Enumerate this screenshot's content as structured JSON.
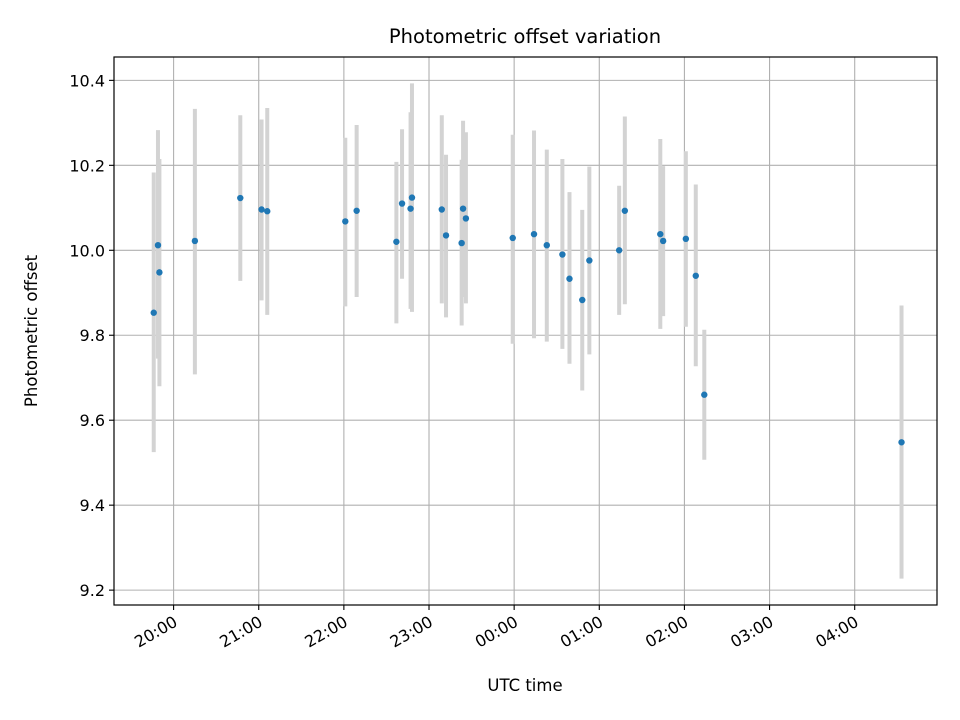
{
  "chart_data": {
    "type": "scatter",
    "title": "Photometric offset variation",
    "xlabel": "UTC time",
    "ylabel": "Photometric offset",
    "x_unit": "UTC time of day (wraps past midnight)",
    "xlim": [
      "19:18",
      "04:58"
    ],
    "ylim": [
      9.165,
      10.455
    ],
    "x_ticks": [
      "20:00",
      "21:00",
      "22:00",
      "23:00",
      "00:00",
      "01:00",
      "02:00",
      "03:00",
      "04:00"
    ],
    "y_ticks": [
      "9.2",
      "9.4",
      "9.6",
      "9.8",
      "10.0",
      "10.2",
      "10.4"
    ],
    "grid": true,
    "legend": "none",
    "colors": {
      "marker": "#1f77b4",
      "errorbar": "#d3d3d3",
      "grid": "#b0b0b0",
      "axes": "#000000"
    },
    "points": [
      {
        "x": "19:46",
        "y": 9.853,
        "ylow": 9.525,
        "yhigh": 10.183
      },
      {
        "x": "19:49",
        "y": 10.012,
        "ylow": 9.745,
        "yhigh": 10.283
      },
      {
        "x": "19:50",
        "y": 9.948,
        "ylow": 9.68,
        "yhigh": 10.215
      },
      {
        "x": "20:15",
        "y": 10.022,
        "ylow": 9.708,
        "yhigh": 10.333
      },
      {
        "x": "20:47",
        "y": 10.123,
        "ylow": 9.928,
        "yhigh": 10.318
      },
      {
        "x": "21:02",
        "y": 10.096,
        "ylow": 9.882,
        "yhigh": 10.308
      },
      {
        "x": "21:06",
        "y": 10.092,
        "ylow": 9.848,
        "yhigh": 10.335
      },
      {
        "x": "22:01",
        "y": 10.068,
        "ylow": 9.868,
        "yhigh": 10.265
      },
      {
        "x": "22:09",
        "y": 10.093,
        "ylow": 9.89,
        "yhigh": 10.295
      },
      {
        "x": "22:37",
        "y": 10.02,
        "ylow": 9.828,
        "yhigh": 10.208
      },
      {
        "x": "22:41",
        "y": 10.11,
        "ylow": 9.933,
        "yhigh": 10.285
      },
      {
        "x": "22:47",
        "y": 10.098,
        "ylow": 9.862,
        "yhigh": 10.325
      },
      {
        "x": "22:48",
        "y": 10.124,
        "ylow": 9.855,
        "yhigh": 10.393
      },
      {
        "x": "23:09",
        "y": 10.096,
        "ylow": 9.875,
        "yhigh": 10.318
      },
      {
        "x": "23:12",
        "y": 10.035,
        "ylow": 9.842,
        "yhigh": 10.225
      },
      {
        "x": "23:23",
        "y": 10.017,
        "ylow": 9.823,
        "yhigh": 10.213
      },
      {
        "x": "23:24",
        "y": 10.098,
        "ylow": 9.89,
        "yhigh": 10.305
      },
      {
        "x": "23:26",
        "y": 10.075,
        "ylow": 9.875,
        "yhigh": 10.278
      },
      {
        "x": "23:59",
        "y": 10.029,
        "ylow": 9.78,
        "yhigh": 10.272
      },
      {
        "x": "00:14",
        "y": 10.038,
        "ylow": 9.793,
        "yhigh": 10.282
      },
      {
        "x": "00:23",
        "y": 10.012,
        "ylow": 9.785,
        "yhigh": 10.237
      },
      {
        "x": "00:34",
        "y": 9.99,
        "ylow": 9.768,
        "yhigh": 10.215
      },
      {
        "x": "00:39",
        "y": 9.933,
        "ylow": 9.733,
        "yhigh": 10.137
      },
      {
        "x": "00:48",
        "y": 9.883,
        "ylow": 9.67,
        "yhigh": 10.095
      },
      {
        "x": "00:53",
        "y": 9.976,
        "ylow": 9.755,
        "yhigh": 10.197
      },
      {
        "x": "01:14",
        "y": 10.0,
        "ylow": 9.848,
        "yhigh": 10.152
      },
      {
        "x": "01:18",
        "y": 10.093,
        "ylow": 9.873,
        "yhigh": 10.315
      },
      {
        "x": "01:43",
        "y": 10.038,
        "ylow": 9.815,
        "yhigh": 10.262
      },
      {
        "x": "01:45",
        "y": 10.022,
        "ylow": 9.845,
        "yhigh": 10.198
      },
      {
        "x": "02:01",
        "y": 10.027,
        "ylow": 9.82,
        "yhigh": 10.233
      },
      {
        "x": "02:08",
        "y": 9.94,
        "ylow": 9.727,
        "yhigh": 10.155
      },
      {
        "x": "02:14",
        "y": 9.66,
        "ylow": 9.507,
        "yhigh": 9.813
      },
      {
        "x": "04:33",
        "y": 9.548,
        "ylow": 9.227,
        "yhigh": 9.87
      }
    ]
  }
}
